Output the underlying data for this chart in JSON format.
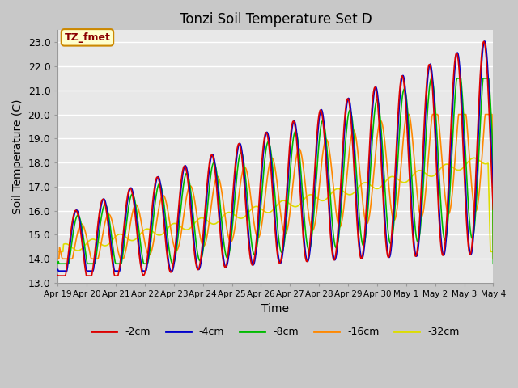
{
  "title": "Tonzi Soil Temperature Set D",
  "xlabel": "Time",
  "ylabel": "Soil Temperature (C)",
  "ylim": [
    13.0,
    23.5
  ],
  "yticks": [
    13.0,
    14.0,
    15.0,
    16.0,
    17.0,
    18.0,
    19.0,
    20.0,
    21.0,
    22.0,
    23.0
  ],
  "legend_labels": [
    "-2cm",
    "-4cm",
    "-8cm",
    "-16cm",
    "-32cm"
  ],
  "legend_colors": [
    "#dd0000",
    "#0000cc",
    "#00bb00",
    "#ff8800",
    "#dddd00"
  ],
  "annotation_text": "TZ_fmet",
  "annotation_bg": "#ffffcc",
  "annotation_border": "#cc8800",
  "axes_bg": "#e8e8e8",
  "fig_bg": "#c8c8c8",
  "grid_color": "#ffffff",
  "xtick_labels": [
    "Apr 19",
    "Apr 20",
    "Apr 21",
    "Apr 22",
    "Apr 23",
    "Apr 24",
    "Apr 25",
    "Apr 26",
    "Apr 27",
    "Apr 28",
    "Apr 29",
    "Apr 30",
    "May 1",
    "May 2",
    "May 3",
    "May 4"
  ],
  "figsize": [
    6.4,
    4.8
  ],
  "dpi": 100
}
